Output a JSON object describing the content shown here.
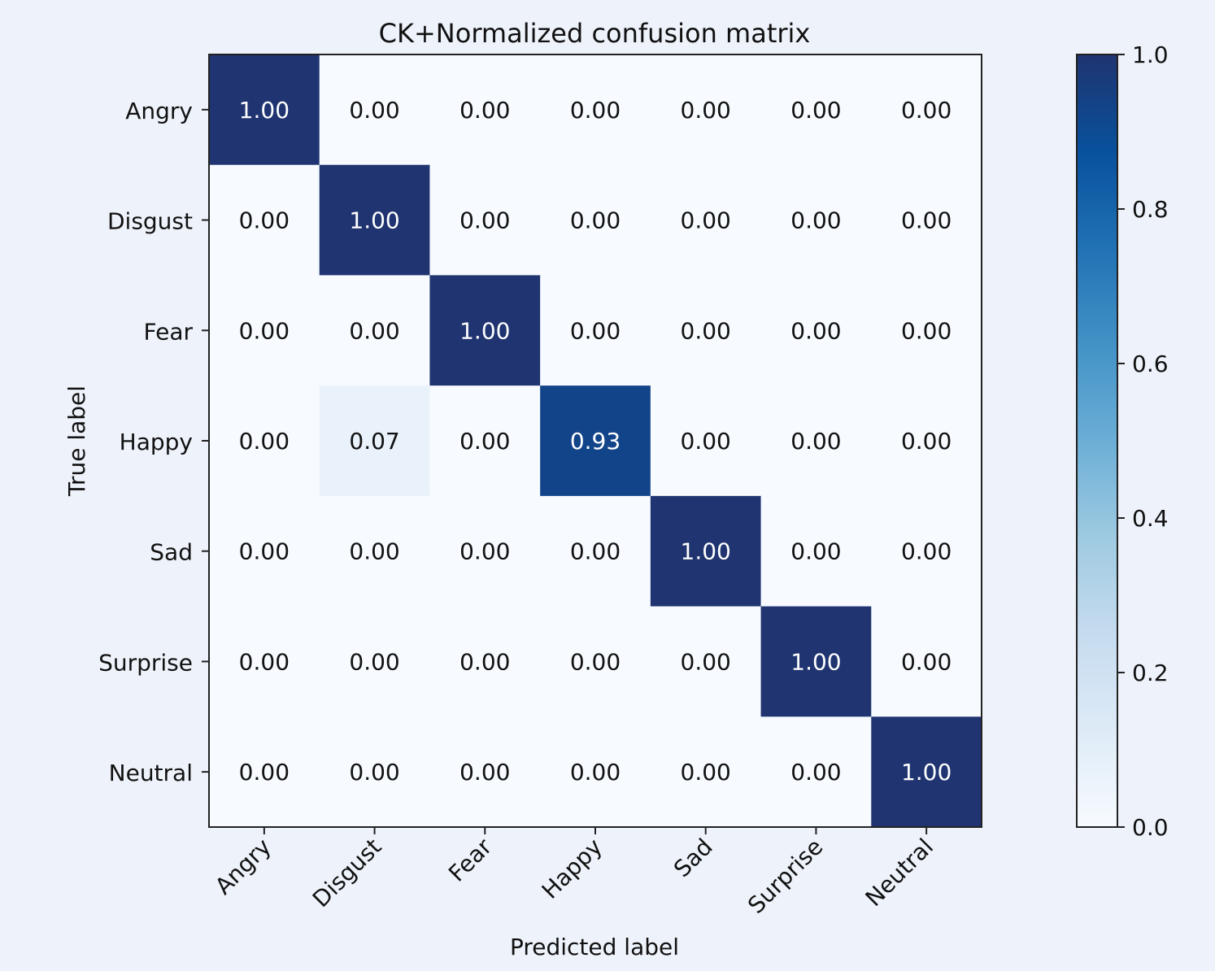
{
  "chart_data": {
    "type": "heatmap",
    "title": "CK+Normalized confusion matrix",
    "xlabel": "Predicted label",
    "ylabel": "True label",
    "x_categories": [
      "Angry",
      "Disgust",
      "Fear",
      "Happy",
      "Sad",
      "Surprise",
      "Neutral"
    ],
    "y_categories": [
      "Angry",
      "Disgust",
      "Fear",
      "Happy",
      "Sad",
      "Surprise",
      "Neutral"
    ],
    "values": [
      [
        1.0,
        0.0,
        0.0,
        0.0,
        0.0,
        0.0,
        0.0
      ],
      [
        0.0,
        1.0,
        0.0,
        0.0,
        0.0,
        0.0,
        0.0
      ],
      [
        0.0,
        0.0,
        1.0,
        0.0,
        0.0,
        0.0,
        0.0
      ],
      [
        0.0,
        0.07,
        0.0,
        0.93,
        0.0,
        0.0,
        0.0
      ],
      [
        0.0,
        0.0,
        0.0,
        0.0,
        1.0,
        0.0,
        0.0
      ],
      [
        0.0,
        0.0,
        0.0,
        0.0,
        0.0,
        1.0,
        0.0
      ],
      [
        0.0,
        0.0,
        0.0,
        0.0,
        0.0,
        0.0,
        1.0
      ]
    ],
    "value_format": "0.00",
    "colormap": "Blues",
    "colorbar": {
      "range": [
        0.0,
        1.0
      ],
      "ticks": [
        "0.0",
        "0.2",
        "0.4",
        "0.6",
        "0.8",
        "1.0"
      ]
    }
  }
}
